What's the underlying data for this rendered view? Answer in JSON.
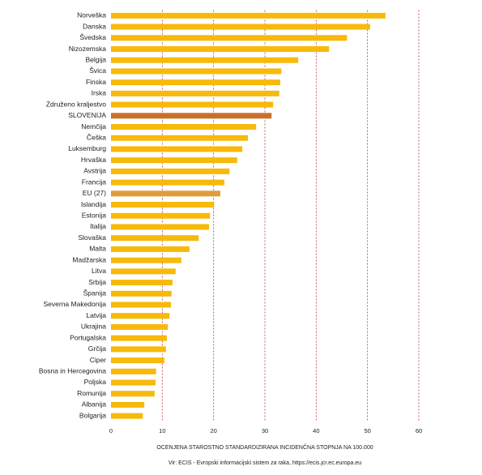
{
  "chart_data": {
    "type": "barh",
    "xlabel": "OCENJENA STAROSTNO STANDARDIZIRANA INCIDENČNA STOPNJA NA 100.000",
    "source": "Vir: ECIS - Evropski informacijski sistem za raka, https://ecis.jcr.ec.europa.eu",
    "categories": [
      "Norveška",
      "Danska",
      "Švedska",
      "Nizozemska",
      "Belgija",
      "Švica",
      "Finska",
      "Irska",
      "Združeno kraljestvo",
      "SLOVENIJA",
      "Nemčija",
      "Češka",
      "Luksemburg",
      "Hrvaška",
      "Avstrija",
      "Francija",
      "EU (27)",
      "Islandija",
      "Estonija",
      "Italija",
      "Slovaška",
      "Malta",
      "Madžarska",
      "Litva",
      "Srbija",
      "Španija",
      "Severna Makedonija",
      "Latvija",
      "Ukrajina",
      "Portugalska",
      "Grčija",
      "Ciper",
      "Bosna in Hercegovina",
      "Poljska",
      "Romunija",
      "Albanija",
      "Bolgarija"
    ],
    "values": [
      53.5,
      50.5,
      46.0,
      42.5,
      36.5,
      33.2,
      33.0,
      32.8,
      31.6,
      31.3,
      28.3,
      26.7,
      25.6,
      24.6,
      23.1,
      22.1,
      21.3,
      20.1,
      19.3,
      19.1,
      17.1,
      15.3,
      13.7,
      12.6,
      12.0,
      11.8,
      11.7,
      11.4,
      11.1,
      10.9,
      10.7,
      10.4,
      8.8,
      8.7,
      8.5,
      6.5,
      6.2
    ],
    "color": "#f7b90a",
    "highlight_colors": {
      "SLOVENIJA": "#c8702a",
      "EU (27)": "#e09b3a"
    },
    "grid_color": "#c0343c",
    "xlim": [
      0,
      60
    ],
    "xticks": [
      0,
      10,
      20,
      30,
      40,
      50,
      60
    ],
    "grid": true
  }
}
